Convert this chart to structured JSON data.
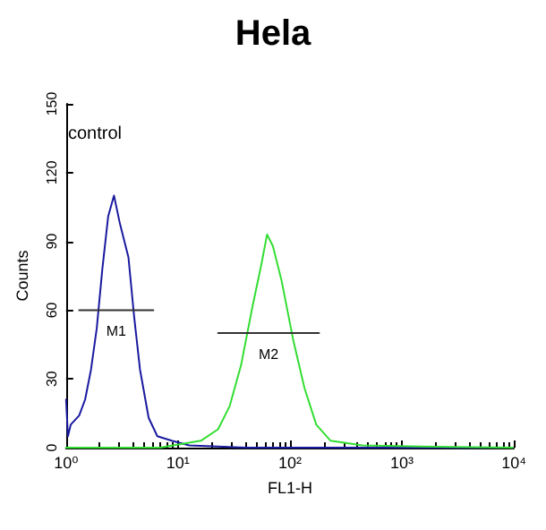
{
  "chart_data": {
    "type": "line",
    "title": "Hela",
    "xlabel": "FL1-H",
    "ylabel": "Counts",
    "log": "x",
    "grid": false,
    "marker": "none",
    "line_style": "solid",
    "xlim": [
      1,
      10000
    ],
    "ylim": [
      0,
      150
    ],
    "xticks": [
      {
        "value": 1,
        "label": "10⁰"
      },
      {
        "value": 10,
        "label": "10¹"
      },
      {
        "value": 100,
        "label": "10²"
      },
      {
        "value": 1000,
        "label": "10³"
      },
      {
        "value": 10000,
        "label": "10⁴"
      }
    ],
    "yticks": [
      0,
      30,
      60,
      90,
      120,
      150
    ],
    "series": [
      {
        "color": "#1a1aa0",
        "x": [
          1,
          1.04,
          1.1,
          1.31,
          1.48,
          1.67,
          1.88,
          2.11,
          2.38,
          2.68,
          3.02,
          3.61,
          4.06,
          4.58,
          5.47,
          6.54,
          8.8,
          12.6,
          41,
          9800
        ],
        "values": [
          21,
          5,
          10,
          14,
          21,
          34,
          52,
          78,
          101,
          110,
          98,
          83,
          57,
          34,
          13,
          5,
          3,
          1,
          0,
          0
        ]
      },
      {
        "color": "#33dd33",
        "x": [
          1,
          6.9,
          16,
          22.8,
          28.9,
          36.6,
          46.5,
          55.6,
          62.5,
          70.4,
          84.1,
          107,
          135,
          172,
          231,
          444,
          1459,
          9800
        ],
        "values": [
          0,
          0,
          3,
          8,
          18,
          36,
          62,
          80,
          93,
          88,
          73,
          47,
          26,
          10,
          3,
          1,
          0.5,
          0
        ]
      },
      {
        "color": "#333333",
        "x": [
          1.31,
          6.02
        ],
        "values": [
          60,
          60
        ]
      },
      {
        "color": "#333333",
        "x": [
          22.8,
          182
        ],
        "values": [
          50,
          50
        ]
      }
    ],
    "annotations": [
      "control",
      "M1",
      "M2"
    ]
  }
}
